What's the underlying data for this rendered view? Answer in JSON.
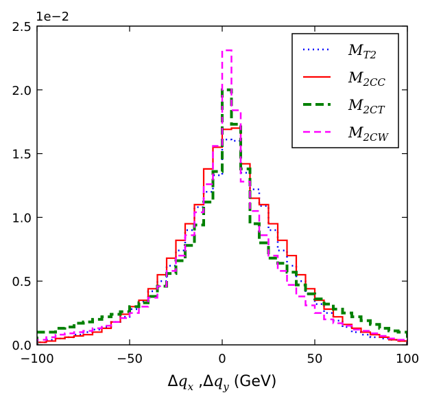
{
  "chart_data": {
    "type": "line",
    "style": "step-histogram",
    "title": "",
    "xlabel": {
      "prefix": "Δ",
      "q1": "q",
      "sub1": "x",
      "sep": " ,Δ",
      "q2": "q",
      "sub2": "y",
      "unit": " (GeV)"
    },
    "ylabel": "",
    "y_offset_label": "1e−2",
    "xlim": [
      -100,
      100
    ],
    "ylim": [
      0,
      2.5
    ],
    "x_ticks": [
      -100,
      -50,
      0,
      50,
      100
    ],
    "x_tick_labels": [
      "−100",
      "−50",
      "0",
      "50",
      "100"
    ],
    "y_ticks": [
      0.0,
      0.5,
      1.0,
      1.5,
      2.0,
      2.5
    ],
    "y_tick_labels": [
      "0.0",
      "0.5",
      "1.0",
      "1.5",
      "2.0",
      "2.5"
    ],
    "bin_edges": [
      -100,
      -95,
      -90,
      -85,
      -80,
      -75,
      -70,
      -65,
      -60,
      -55,
      -50,
      -45,
      -40,
      -35,
      -30,
      -25,
      -20,
      -15,
      -10,
      -5,
      0,
      5,
      10,
      15,
      20,
      25,
      30,
      35,
      40,
      45,
      50,
      55,
      60,
      65,
      70,
      75,
      80,
      85,
      90,
      95,
      100
    ],
    "legend_position": "top-right",
    "series": [
      {
        "name": "M_T2",
        "label_main": "M",
        "label_sub": "T2",
        "color": "#0000ff",
        "dash": "2,5",
        "width": 2.5,
        "values": [
          0.02,
          0.04,
          0.05,
          0.06,
          0.08,
          0.1,
          0.12,
          0.14,
          0.18,
          0.22,
          0.28,
          0.34,
          0.42,
          0.5,
          0.62,
          0.74,
          0.9,
          1.08,
          1.2,
          1.33,
          1.61,
          1.6,
          1.35,
          1.22,
          1.09,
          0.9,
          0.74,
          0.62,
          0.5,
          0.4,
          0.32,
          0.25,
          0.19,
          0.14,
          0.1,
          0.08,
          0.06,
          0.05,
          0.04,
          0.03
        ]
      },
      {
        "name": "M_2CC",
        "label_main": "M",
        "label_sub": "2CC",
        "color": "#ff0000",
        "dash": "",
        "width": 2.2,
        "values": [
          0.02,
          0.03,
          0.05,
          0.06,
          0.07,
          0.08,
          0.1,
          0.13,
          0.18,
          0.24,
          0.3,
          0.35,
          0.44,
          0.55,
          0.68,
          0.82,
          0.95,
          1.1,
          1.38,
          1.55,
          1.69,
          1.7,
          1.42,
          1.15,
          1.1,
          0.95,
          0.82,
          0.7,
          0.55,
          0.44,
          0.35,
          0.28,
          0.22,
          0.16,
          0.13,
          0.1,
          0.08,
          0.06,
          0.04,
          0.03
        ]
      },
      {
        "name": "M_2CT",
        "label_main": "M",
        "label_sub": "2CT",
        "color": "#008000",
        "dash": "12,6",
        "width": 4,
        "values": [
          0.1,
          0.1,
          0.13,
          0.14,
          0.17,
          0.18,
          0.2,
          0.22,
          0.24,
          0.26,
          0.3,
          0.33,
          0.38,
          0.46,
          0.56,
          0.66,
          0.78,
          0.94,
          1.12,
          1.36,
          2.0,
          1.73,
          1.38,
          0.95,
          0.8,
          0.68,
          0.64,
          0.57,
          0.47,
          0.4,
          0.36,
          0.32,
          0.28,
          0.25,
          0.22,
          0.19,
          0.16,
          0.13,
          0.11,
          0.1
        ]
      },
      {
        "name": "M_2CW",
        "label_main": "M",
        "label_sub": "2CW",
        "color": "#ff00ff",
        "dash": "10,6",
        "width": 2.5,
        "values": [
          0.04,
          0.06,
          0.08,
          0.09,
          0.1,
          0.11,
          0.13,
          0.15,
          0.18,
          0.21,
          0.25,
          0.3,
          0.37,
          0.46,
          0.58,
          0.7,
          0.86,
          1.04,
          1.26,
          1.56,
          2.31,
          1.84,
          1.28,
          1.05,
          0.86,
          0.7,
          0.58,
          0.47,
          0.38,
          0.31,
          0.25,
          0.2,
          0.17,
          0.15,
          0.12,
          0.11,
          0.09,
          0.07,
          0.05,
          0.04
        ]
      }
    ]
  }
}
